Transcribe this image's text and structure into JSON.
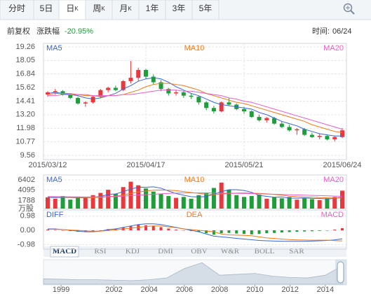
{
  "tabs": [
    {
      "label": "分时"
    },
    {
      "label": "5日"
    },
    {
      "label": "日",
      "suffix": "K"
    },
    {
      "label": "周",
      "suffix": "K"
    },
    {
      "label": "月",
      "suffix": "K"
    },
    {
      "label": "1年"
    },
    {
      "label": "3年"
    },
    {
      "label": "5年"
    }
  ],
  "info": {
    "adjust": "前复权",
    "change_label": "涨跌幅",
    "change": "-20.95%",
    "time_label": "时间:",
    "date": "06/24"
  },
  "indicator_tabs": [
    "MACD",
    "RSI",
    "KDJ",
    "DMI",
    "OBV",
    "W&R",
    "BOLL",
    "SAR"
  ],
  "chart_data": [
    {
      "type": "candlestick",
      "up_color": "#e8383d",
      "down_color": "#1f9d3a",
      "categories": [
        "2015/03/12",
        null,
        null,
        null,
        null,
        null,
        null,
        null,
        null,
        null,
        null,
        null,
        null,
        "2015/04/17",
        null,
        null,
        null,
        null,
        null,
        null,
        null,
        null,
        null,
        null,
        null,
        null,
        "2015/05/21",
        null,
        null,
        null,
        null,
        null,
        null,
        null,
        null,
        null,
        null,
        null,
        null,
        "2015/06/24"
      ],
      "candles": [
        [
          15.0,
          15.3,
          14.8,
          15.2
        ],
        [
          15.2,
          15.5,
          15.0,
          15.3
        ],
        [
          15.3,
          15.4,
          14.9,
          15.0
        ],
        [
          15.0,
          15.1,
          14.6,
          14.7
        ],
        [
          14.7,
          14.8,
          14.1,
          14.2
        ],
        [
          14.2,
          14.4,
          13.9,
          14.3
        ],
        [
          14.3,
          14.9,
          14.2,
          14.8
        ],
        [
          14.8,
          15.5,
          14.7,
          15.4
        ],
        [
          15.4,
          15.7,
          15.2,
          15.6
        ],
        [
          15.6,
          15.8,
          15.3,
          15.4
        ],
        [
          15.4,
          16.3,
          15.3,
          16.2
        ],
        [
          16.2,
          18.0,
          16.0,
          16.5
        ],
        [
          16.5,
          17.4,
          16.2,
          17.2
        ],
        [
          17.2,
          17.3,
          16.4,
          16.6
        ],
        [
          16.6,
          16.8,
          15.9,
          16.1
        ],
        [
          16.1,
          16.3,
          15.3,
          15.5
        ],
        [
          15.5,
          15.6,
          14.9,
          15.1
        ],
        [
          15.1,
          15.4,
          14.9,
          15.2
        ],
        [
          15.2,
          15.3,
          14.7,
          14.9
        ],
        [
          14.9,
          15.1,
          14.6,
          14.8
        ],
        [
          14.8,
          14.9,
          14.1,
          14.3
        ],
        [
          14.3,
          14.4,
          13.6,
          13.8
        ],
        [
          13.8,
          14.0,
          13.3,
          13.5
        ],
        [
          13.5,
          14.4,
          13.4,
          14.3
        ],
        [
          14.3,
          14.7,
          14.0,
          14.1
        ],
        [
          14.1,
          14.2,
          13.6,
          13.7
        ],
        [
          13.7,
          13.9,
          13.3,
          13.5
        ],
        [
          13.5,
          13.6,
          12.9,
          13.0
        ],
        [
          13.0,
          13.2,
          12.6,
          12.7
        ],
        [
          12.7,
          13.0,
          12.5,
          12.9
        ],
        [
          12.9,
          13.0,
          12.3,
          12.4
        ],
        [
          12.4,
          12.6,
          12.0,
          12.1
        ],
        [
          12.1,
          12.3,
          11.7,
          11.8
        ],
        [
          11.8,
          12.0,
          11.4,
          11.9
        ],
        [
          11.9,
          12.0,
          11.3,
          11.4
        ],
        [
          11.4,
          11.6,
          11.1,
          11.2
        ],
        [
          11.2,
          11.5,
          11.0,
          11.3
        ],
        [
          11.3,
          11.4,
          10.9,
          11.0
        ],
        [
          11.0,
          11.3,
          10.8,
          11.2
        ],
        [
          11.2,
          12.0,
          11.1,
          11.8
        ]
      ],
      "series": [
        {
          "name": "MA5",
          "color": "#3a66d6",
          "values": [
            15.1,
            15.2,
            15.1,
            15.0,
            14.9,
            14.7,
            14.6,
            14.7,
            14.9,
            15.1,
            15.5,
            15.8,
            16.2,
            16.4,
            16.5,
            16.4,
            16.1,
            15.7,
            15.4,
            15.1,
            14.9,
            14.6,
            14.3,
            14.1,
            14.0,
            13.9,
            13.8,
            13.7,
            13.4,
            13.2,
            12.9,
            12.6,
            12.4,
            12.2,
            11.9,
            11.7,
            11.5,
            11.4,
            11.3,
            11.3
          ]
        },
        {
          "name": "MA10",
          "color": "#f07a1a",
          "values": [
            15.0,
            15.1,
            15.1,
            15.1,
            15.0,
            14.9,
            14.9,
            14.8,
            14.9,
            14.9,
            15.0,
            15.2,
            15.4,
            15.7,
            15.9,
            16.0,
            16.0,
            15.9,
            15.8,
            15.6,
            15.4,
            15.1,
            14.9,
            14.7,
            14.5,
            14.3,
            14.2,
            14.0,
            13.8,
            13.6,
            13.4,
            13.2,
            13.0,
            12.8,
            12.6,
            12.3,
            12.1,
            11.9,
            11.7,
            11.6
          ]
        },
        {
          "name": "MA20",
          "color": "#e860c8",
          "values": [
            14.9,
            14.9,
            15.0,
            15.0,
            15.0,
            15.0,
            14.9,
            14.9,
            14.9,
            14.9,
            15.0,
            15.0,
            15.1,
            15.2,
            15.3,
            15.4,
            15.4,
            15.4,
            15.3,
            15.3,
            15.2,
            15.1,
            15.0,
            14.9,
            14.7,
            14.6,
            14.4,
            14.3,
            14.1,
            13.9,
            13.7,
            13.5,
            13.3,
            13.1,
            12.9,
            12.7,
            12.5,
            12.3,
            12.1,
            11.9
          ]
        }
      ],
      "ylim": [
        9.56,
        19.26
      ],
      "yticks": [
        19.26,
        18.05,
        16.84,
        15.62,
        14.41,
        {
          "value": 13.2,
          "label": "13.20"
        },
        11.98,
        10.77,
        9.56
      ],
      "grid": true
    },
    {
      "type": "bar",
      "unit": "万股",
      "values": [
        2500,
        2200,
        2800,
        2000,
        2600,
        2400,
        3000,
        3500,
        4200,
        3300,
        4800,
        6000,
        5200,
        4500,
        3800,
        3300,
        2800,
        2400,
        2600,
        2200,
        3000,
        3500,
        4600,
        5800,
        4200,
        3000,
        2600,
        2800,
        3100,
        2200,
        2500,
        2300,
        2600,
        2000,
        2400,
        2100,
        1900,
        2300,
        2600,
        4000
      ],
      "series": [
        {
          "name": "MA5",
          "color": "#3a66d6",
          "values": [
            2500,
            2450,
            2500,
            2450,
            2420,
            2400,
            2560,
            2700,
            3140,
            3280,
            3760,
            4360,
            4780,
            4760,
            4860,
            4560,
            3920,
            3360,
            2980,
            2660,
            2600,
            2700,
            3180,
            3780,
            4220,
            4220,
            4040,
            3640,
            2940,
            2740,
            2540,
            2600,
            2340,
            2320,
            2360,
            2280,
            2260,
            2140,
            2260,
            2580
          ]
        },
        {
          "name": "MA10",
          "color": "#f07a1a",
          "values": [
            2600,
            2580,
            2550,
            2500,
            2480,
            2450,
            2480,
            2520,
            2700,
            2800,
            3000,
            3400,
            3700,
            3900,
            4100,
            4150,
            4100,
            4000,
            3800,
            3600,
            3400,
            3200,
            3100,
            3250,
            3400,
            3450,
            3500,
            3450,
            3400,
            3300,
            3150,
            3000,
            2800,
            2650,
            2600,
            2550,
            2450,
            2400,
            2350,
            2400
          ]
        },
        {
          "name": "MA20",
          "color": "#e860c8",
          "values": [
            2700,
            2680,
            2660,
            2640,
            2620,
            2600,
            2600,
            2620,
            2650,
            2700,
            2780,
            2900,
            3000,
            3100,
            3200,
            3300,
            3400,
            3450,
            3500,
            3500,
            3500,
            3500,
            3480,
            3450,
            3420,
            3400,
            3380,
            3350,
            3300,
            3250,
            3200,
            3150,
            3100,
            3050,
            3000,
            2950,
            2900,
            2850,
            2800,
            2750
          ]
        }
      ],
      "ylim": [
        0,
        6402
      ],
      "yticks": [
        6402,
        4095,
        1788
      ]
    },
    {
      "type": "macd",
      "bars": {
        "name": "MACD",
        "values": [
          0.05,
          0.03,
          0,
          -0.05,
          -0.1,
          -0.12,
          -0.08,
          0,
          0.08,
          0.12,
          0.2,
          0.3,
          0.38,
          0.35,
          0.3,
          0.22,
          0.12,
          0.05,
          0,
          -0.05,
          -0.1,
          -0.2,
          -0.3,
          -0.2,
          -0.18,
          -0.22,
          -0.25,
          -0.28,
          -0.25,
          -0.2,
          -0.18,
          -0.15,
          -0.12,
          -0.1,
          -0.08,
          -0.06,
          -0.04,
          -0.02,
          0.05,
          0.15
        ]
      },
      "series": [
        {
          "name": "DIFF",
          "color": "#3a66d6",
          "values": [
            0.1,
            0.1,
            0.05,
            0,
            -0.05,
            -0.1,
            -0.1,
            -0.05,
            0.05,
            0.1,
            0.2,
            0.3,
            0.4,
            0.45,
            0.45,
            0.4,
            0.3,
            0.2,
            0.1,
            0,
            -0.1,
            -0.25,
            -0.4,
            -0.45,
            -0.5,
            -0.55,
            -0.6,
            -0.65,
            -0.7,
            -0.72,
            -0.74,
            -0.75,
            -0.76,
            -0.76,
            -0.75,
            -0.74,
            -0.72,
            -0.7,
            -0.66,
            -0.58
          ]
        },
        {
          "name": "DEA",
          "color": "#f07a1a",
          "values": [
            0.07,
            0.08,
            0.05,
            0.02,
            0,
            -0.04,
            -0.06,
            -0.05,
            -0.02,
            0.04,
            0.1,
            0.15,
            0.2,
            0.27,
            0.3,
            0.3,
            0.24,
            0.18,
            0.1,
            0.05,
            0,
            -0.05,
            -0.1,
            -0.25,
            -0.32,
            -0.33,
            -0.35,
            -0.37,
            -0.45,
            -0.52,
            -0.56,
            -0.6,
            -0.64,
            -0.66,
            -0.67,
            -0.68,
            -0.68,
            -0.68,
            -0.71,
            -0.73
          ]
        }
      ],
      "ylim": [
        -1.3,
        1.4
      ],
      "yticks": [
        0.98,
        {
          "value": 0,
          "label": "0.00"
        },
        -0.98
      ]
    },
    {
      "type": "area",
      "color": "#d5dde7",
      "x": [
        1998,
        1999,
        2000,
        2001,
        2002,
        2003,
        2004,
        2005,
        2006,
        2007,
        2008,
        2009,
        2010,
        2011,
        2012,
        2013,
        2014,
        2015
      ],
      "values": [
        12,
        11,
        10,
        10,
        9,
        8,
        10,
        14,
        35,
        48,
        20,
        22,
        24,
        18,
        15,
        14,
        20,
        42
      ],
      "xlim": [
        1998,
        2015.2
      ],
      "xticks": [
        1999,
        2002,
        2004,
        2006,
        2008,
        2010,
        2012,
        2014
      ],
      "ylim": [
        0,
        50
      ]
    }
  ]
}
